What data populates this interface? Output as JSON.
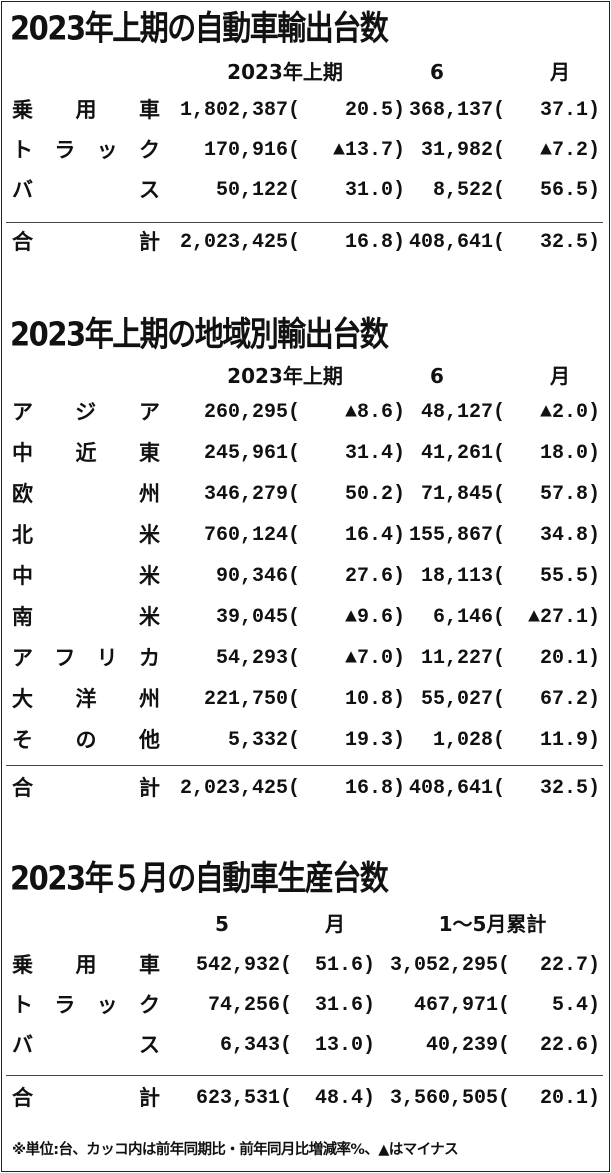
{
  "sections": [
    {
      "title": "2023年上期の自動車輸出台数",
      "headers": [
        "2023年上期",
        "6月"
      ],
      "rows": [
        [
          "乗用車",
          "1,802,387(",
          "20.5)",
          "368,137(",
          "37.1)"
        ],
        [
          "トラック",
          "170,916(",
          "▲13.7)",
          "31,982(",
          "▲7.2)"
        ],
        [
          "バス",
          "50,122(",
          "31.0)",
          "8,522(",
          "56.5)"
        ]
      ],
      "total": [
        "合計",
        "2,023,425(",
        "16.8)",
        "408,641(",
        "32.5)"
      ]
    },
    {
      "title": "2023年上期の地域別輸出台数",
      "headers": [
        "2023年上期",
        "6月"
      ],
      "rows": [
        [
          "アジア",
          "260,295(",
          "▲8.6)",
          "48,127(",
          "▲2.0)"
        ],
        [
          "中近東",
          "245,961(",
          "31.4)",
          "41,261(",
          "18.0)"
        ],
        [
          "欧州",
          "346,279(",
          "50.2)",
          "71,845(",
          "57.8)"
        ],
        [
          "北米",
          "760,124(",
          "16.4)",
          "155,867(",
          "34.8)"
        ],
        [
          "中米",
          "90,346(",
          "27.6)",
          "18,113(",
          "55.5)"
        ],
        [
          "南米",
          "39,045(",
          "▲9.6)",
          "6,146(",
          "▲27.1)"
        ],
        [
          "アフリカ",
          "54,293(",
          "▲7.0)",
          "11,227(",
          "20.1)"
        ],
        [
          "大洋州",
          "221,750(",
          "10.8)",
          "55,027(",
          "67.2)"
        ],
        [
          "その他",
          "5,332(",
          "19.3)",
          "1,028(",
          "11.9)"
        ]
      ],
      "total": [
        "合計",
        "2,023,425(",
        "16.8)",
        "408,641(",
        "32.5)"
      ]
    },
    {
      "title": "2023年５月の自動車生産台数",
      "headers": [
        "5月",
        "1～5月累計"
      ],
      "rows": [
        [
          "乗用車",
          "542,932(",
          "51.6)",
          "3,052,295(",
          "22.7)"
        ],
        [
          "トラック",
          "74,256(",
          "31.6)",
          "467,971(",
          "5.4)"
        ],
        [
          "バス",
          "6,343(",
          "13.0)",
          "40,239(",
          "22.6)"
        ]
      ],
      "total": [
        "合計",
        "623,531(",
        "48.4)",
        "3,560,505(",
        "20.1)"
      ]
    }
  ],
  "note": "※単位:台、カッコ内は前年同期比・前年同月比増減率%、▲はマイナス"
}
